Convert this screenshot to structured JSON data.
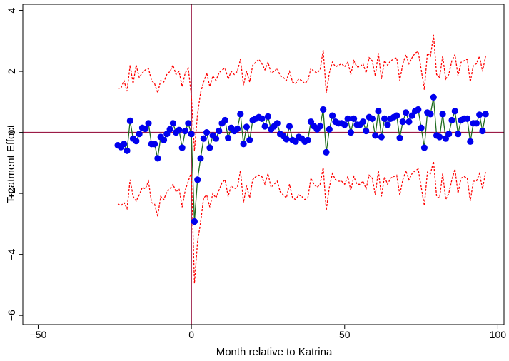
{
  "chart_data": {
    "type": "line",
    "xlabel": "Month relative to Katrina",
    "ylabel": "Treatment Effect",
    "xlim": [
      -55,
      102
    ],
    "ylim": [
      -6.3,
      4.2
    ],
    "xticks": [
      -50,
      0,
      50,
      100
    ],
    "yticks": [
      -6,
      -4,
      -2,
      0,
      2,
      4
    ],
    "grid": false,
    "reference_lines": {
      "x": 0,
      "y": 0,
      "color": "#9b1b46"
    },
    "colors": {
      "point": "#0000ee",
      "estimate_line": "#1f6b1f",
      "ci_line": "#ff0000"
    },
    "series": [
      {
        "role": "estimate",
        "x": [
          -24,
          -23,
          -22,
          -21,
          -20,
          -19,
          -18,
          -17,
          -16,
          -15,
          -14,
          -13,
          -12,
          -11,
          -10,
          -9,
          -8,
          -7,
          -6,
          -5,
          -4,
          -3,
          -2,
          -1,
          0,
          1,
          2,
          3,
          4,
          5,
          6,
          7,
          8,
          9,
          10,
          11,
          12,
          13,
          14,
          15,
          16,
          17,
          18,
          19,
          20,
          21,
          22,
          23,
          24,
          25,
          26,
          27,
          28,
          29,
          30,
          31,
          32,
          33,
          34,
          35,
          36,
          37,
          38,
          39,
          40,
          41,
          42,
          43,
          44,
          45,
          46,
          47,
          48,
          49,
          50,
          51,
          52,
          53,
          54,
          55,
          56,
          57,
          58,
          59,
          60,
          61,
          62,
          63,
          64,
          65,
          66,
          67,
          68,
          69,
          70,
          71,
          72,
          73,
          74,
          75,
          76,
          77,
          78,
          79,
          80,
          81,
          82,
          83,
          84,
          85,
          86,
          87,
          88,
          89,
          90,
          91,
          92,
          93,
          94,
          95,
          96
        ],
        "y": [
          -0.42,
          -0.48,
          -0.38,
          -0.6,
          0.38,
          -0.2,
          -0.28,
          -0.05,
          0.15,
          0.12,
          0.3,
          -0.38,
          -0.38,
          -0.85,
          -0.15,
          -0.25,
          -0.05,
          0.1,
          0.3,
          0.0,
          0.08,
          -0.5,
          0.05,
          0.3,
          -0.05,
          -2.92,
          -1.55,
          -0.85,
          -0.2,
          0.0,
          -0.5,
          -0.1,
          -0.2,
          0.05,
          0.3,
          0.4,
          -0.18,
          0.15,
          0.05,
          0.12,
          0.6,
          -0.38,
          0.18,
          -0.25,
          0.4,
          0.45,
          0.5,
          0.45,
          0.2,
          0.52,
          0.1,
          0.2,
          0.3,
          -0.05,
          -0.12,
          -0.22,
          0.2,
          -0.25,
          -0.3,
          -0.15,
          -0.2,
          -0.3,
          -0.25,
          0.35,
          0.2,
          0.1,
          0.2,
          0.75,
          -0.65,
          0.1,
          0.55,
          0.35,
          0.3,
          0.3,
          0.25,
          0.45,
          0.0,
          0.45,
          0.25,
          0.25,
          0.35,
          0.05,
          0.5,
          0.45,
          -0.1,
          0.7,
          -0.15,
          0.45,
          0.25,
          0.45,
          0.5,
          0.55,
          -0.18,
          0.35,
          0.65,
          0.35,
          0.55,
          0.7,
          0.75,
          0.15,
          -0.5,
          0.65,
          0.6,
          1.15,
          -0.1,
          -0.15,
          0.6,
          -0.2,
          -0.05,
          0.4,
          0.7,
          -0.05,
          0.4,
          0.45,
          0.45,
          -0.3,
          0.3,
          0.3,
          0.58,
          0.05,
          0.6
        ]
      },
      {
        "role": "ci_upper",
        "x": [
          -24,
          -23,
          -22,
          -21,
          -20,
          -19,
          -18,
          -17,
          -16,
          -15,
          -14,
          -13,
          -12,
          -11,
          -10,
          -9,
          -8,
          -7,
          -6,
          -5,
          -4,
          -3,
          -2,
          -1,
          0,
          1,
          2,
          3,
          4,
          5,
          6,
          7,
          8,
          9,
          10,
          11,
          12,
          13,
          14,
          15,
          16,
          17,
          18,
          19,
          20,
          21,
          22,
          23,
          24,
          25,
          26,
          27,
          28,
          29,
          30,
          31,
          32,
          33,
          34,
          35,
          36,
          37,
          38,
          39,
          40,
          41,
          42,
          43,
          44,
          45,
          46,
          47,
          48,
          49,
          50,
          51,
          52,
          53,
          54,
          55,
          56,
          57,
          58,
          59,
          60,
          61,
          62,
          63,
          64,
          65,
          66,
          67,
          68,
          69,
          70,
          71,
          72,
          73,
          74,
          75,
          76,
          77,
          78,
          79,
          80,
          81,
          82,
          83,
          84,
          85,
          86,
          87,
          88,
          89,
          90,
          91,
          92,
          93,
          94,
          95,
          96
        ],
        "y": [
          1.45,
          1.45,
          1.7,
          1.35,
          2.2,
          1.6,
          2.2,
          1.8,
          1.95,
          2.05,
          2.1,
          1.7,
          1.6,
          1.3,
          1.7,
          1.65,
          1.9,
          2.0,
          2.2,
          1.9,
          2.0,
          1.5,
          1.95,
          2.1,
          1.2,
          -0.6,
          0.6,
          1.3,
          1.65,
          1.95,
          1.5,
          1.85,
          1.7,
          1.95,
          2.05,
          2.1,
          1.75,
          2.0,
          1.9,
          2.0,
          2.4,
          1.55,
          2.0,
          1.65,
          2.2,
          2.3,
          2.4,
          2.25,
          2.05,
          2.3,
          1.95,
          2.0,
          2.1,
          1.85,
          1.8,
          1.7,
          2.0,
          1.65,
          1.6,
          1.75,
          1.7,
          1.6,
          1.7,
          2.1,
          2.0,
          1.95,
          2.05,
          2.7,
          1.3,
          1.95,
          2.3,
          2.15,
          2.2,
          2.25,
          2.15,
          2.3,
          1.9,
          2.35,
          2.15,
          2.15,
          2.25,
          1.95,
          2.45,
          2.35,
          1.85,
          2.6,
          1.75,
          2.35,
          2.2,
          2.35,
          2.4,
          2.45,
          1.7,
          2.25,
          2.55,
          2.25,
          2.45,
          2.6,
          2.65,
          2.05,
          1.4,
          2.6,
          2.5,
          3.2,
          1.9,
          1.8,
          2.5,
          1.75,
          1.9,
          2.35,
          2.55,
          1.85,
          2.3,
          2.35,
          2.4,
          1.65,
          2.2,
          2.25,
          2.5,
          2.0,
          2.5
        ]
      },
      {
        "role": "ci_lower",
        "x": [
          -24,
          -23,
          -22,
          -21,
          -20,
          -19,
          -18,
          -17,
          -16,
          -15,
          -14,
          -13,
          -12,
          -11,
          -10,
          -9,
          -8,
          -7,
          -6,
          -5,
          -4,
          -3,
          -2,
          -1,
          0,
          1,
          2,
          3,
          4,
          5,
          6,
          7,
          8,
          9,
          10,
          11,
          12,
          13,
          14,
          15,
          16,
          17,
          18,
          19,
          20,
          21,
          22,
          23,
          24,
          25,
          26,
          27,
          28,
          29,
          30,
          31,
          32,
          33,
          34,
          35,
          36,
          37,
          38,
          39,
          40,
          41,
          42,
          43,
          44,
          45,
          46,
          47,
          48,
          49,
          50,
          51,
          52,
          53,
          54,
          55,
          56,
          57,
          58,
          59,
          60,
          61,
          62,
          63,
          64,
          65,
          66,
          67,
          68,
          69,
          70,
          71,
          72,
          73,
          74,
          75,
          76,
          77,
          78,
          79,
          80,
          81,
          82,
          83,
          84,
          85,
          86,
          87,
          88,
          89,
          90,
          91,
          92,
          93,
          94,
          95,
          96
        ],
        "y": [
          -2.35,
          -2.4,
          -2.3,
          -2.5,
          -1.55,
          -2.1,
          -2.25,
          -2.05,
          -1.8,
          -1.85,
          -1.6,
          -2.3,
          -2.35,
          -2.75,
          -2.1,
          -2.2,
          -1.95,
          -1.85,
          -1.7,
          -1.95,
          -1.85,
          -2.45,
          -1.9,
          -1.6,
          -1.3,
          -4.95,
          -3.6,
          -2.95,
          -2.15,
          -2.05,
          -2.45,
          -2.0,
          -2.15,
          -1.9,
          -1.65,
          -1.55,
          -2.1,
          -1.75,
          -1.85,
          -1.8,
          -1.25,
          -2.3,
          -1.75,
          -2.15,
          -1.55,
          -1.45,
          -1.4,
          -1.45,
          -1.7,
          -1.35,
          -1.8,
          -1.7,
          -1.6,
          -1.95,
          -2.05,
          -2.15,
          -1.7,
          -2.15,
          -2.2,
          -2.05,
          -2.1,
          -2.2,
          -2.15,
          -1.5,
          -1.7,
          -1.8,
          -1.7,
          -1.15,
          -2.55,
          -1.8,
          -1.35,
          -1.55,
          -1.6,
          -1.6,
          -1.7,
          -1.45,
          -1.9,
          -1.45,
          -1.7,
          -1.7,
          -1.6,
          -1.85,
          -1.4,
          -1.5,
          -2.05,
          -1.25,
          -2.1,
          -1.45,
          -1.7,
          -1.5,
          -1.45,
          -1.4,
          -2.05,
          -1.55,
          -1.25,
          -1.55,
          -1.35,
          -1.25,
          -1.2,
          -1.8,
          -2.4,
          -1.3,
          -1.35,
          -0.95,
          -2.1,
          -2.15,
          -1.35,
          -2.2,
          -2.0,
          -1.55,
          -1.2,
          -2.0,
          -1.5,
          -1.45,
          -1.5,
          -2.25,
          -1.6,
          -1.6,
          -1.35,
          -1.85,
          -1.3
        ]
      }
    ]
  }
}
